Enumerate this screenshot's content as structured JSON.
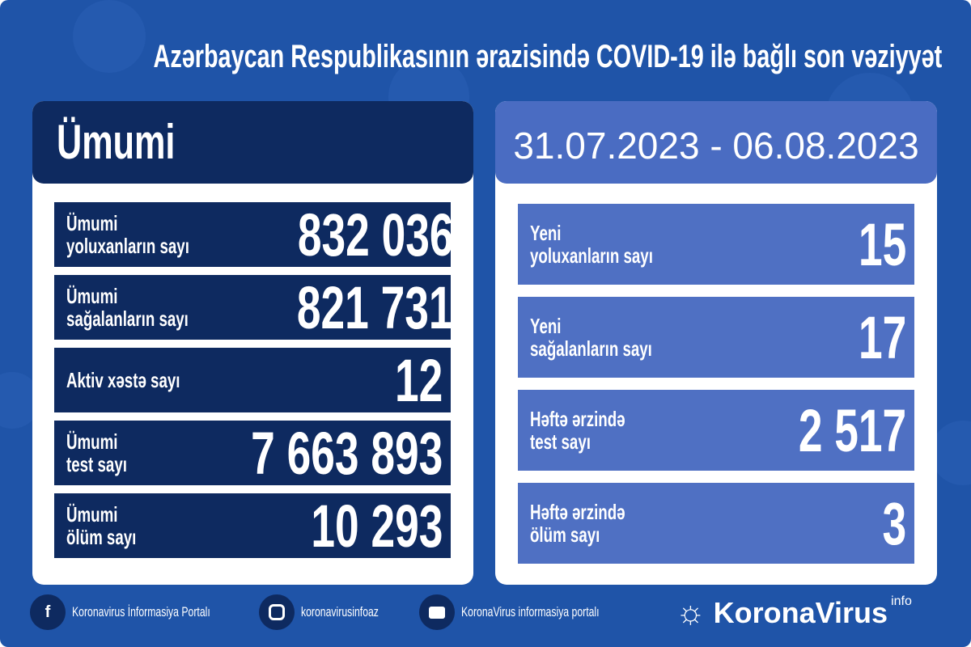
{
  "title": "Azərbaycan Respublikasının ərazisində COVID-19 ilə bağlı son vəziyyət",
  "left": {
    "heading": "Ümumi",
    "rows": [
      {
        "label1": "Ümumi",
        "label2": "yoluxanların sayı",
        "value": "832 036"
      },
      {
        "label1": "Ümumi",
        "label2": "sağalanların sayı",
        "value": "821 731"
      },
      {
        "label1": "Aktiv xəstə sayı",
        "label2": "",
        "value": "12"
      },
      {
        "label1": "Ümumi",
        "label2": "test sayı",
        "value": "7 663 893"
      },
      {
        "label1": "Ümumi",
        "label2": "ölüm sayı",
        "value": "10 293"
      }
    ]
  },
  "right": {
    "heading": "31.07.2023 - 06.08.2023",
    "rows": [
      {
        "label1": "Yeni",
        "label2": "yoluxanların sayı",
        "value": "15"
      },
      {
        "label1": "Yeni",
        "label2": "sağalanların sayı",
        "value": "17"
      },
      {
        "label1": "Həftə ərzində",
        "label2": "test sayı",
        "value": "2 517"
      },
      {
        "label1": "Həftə ərzində",
        "label2": "ölüm sayı",
        "value": "3"
      }
    ]
  },
  "footer": {
    "facebook": "Koronavirus İnformasiya Portalı",
    "instagram": "koronavirusinfoaz",
    "youtube": "KoronaVirus informasiya portalı",
    "brand": "KoronaVirus",
    "brand_sup": "info"
  },
  "colors": {
    "background": "#1f54a8",
    "dark": "#0e2a60",
    "light": "#4f70c3"
  }
}
